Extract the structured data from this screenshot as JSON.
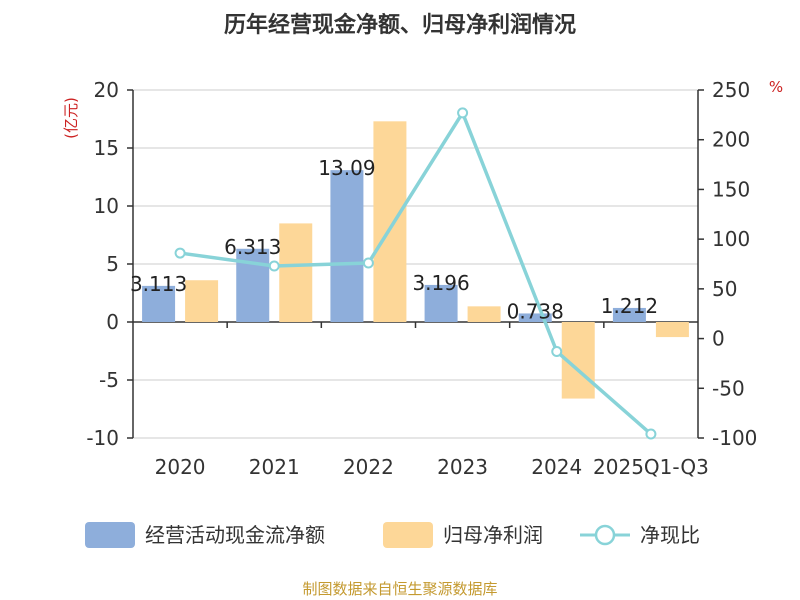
{
  "chart_data": {
    "type": "bar",
    "title": "历年经营现金净额、归母净利润情况",
    "categories": [
      "2020",
      "2021",
      "2022",
      "2023",
      "2024",
      "2025Q1-Q3"
    ],
    "left_axis": {
      "unit": "(亿元)",
      "ylim": [
        -10,
        20
      ],
      "ticks": [
        20,
        15,
        10,
        5,
        0,
        -5,
        -10
      ]
    },
    "right_axis": {
      "unit": "%",
      "ylim": [
        -100,
        250
      ],
      "ticks": [
        250,
        200,
        150,
        100,
        50,
        0,
        -50,
        -100
      ]
    },
    "series": [
      {
        "name": "经营活动现金流净额",
        "type": "bar",
        "axis": "left",
        "color": "#8eaedb",
        "values": [
          3.113,
          6.313,
          13.09,
          3.196,
          0.738,
          1.212
        ],
        "labels": [
          "3.113",
          "6.313",
          "13.09",
          "3.196",
          "0.738",
          "1.212"
        ]
      },
      {
        "name": "归母净利润",
        "type": "bar",
        "axis": "left",
        "color": "#fdd798",
        "values": [
          3.6,
          8.5,
          17.3,
          1.35,
          -6.6,
          -1.3
        ]
      },
      {
        "name": "净现比",
        "type": "line",
        "axis": "right",
        "color": "#88d3d8",
        "values": [
          86,
          73,
          76,
          227,
          -13,
          -96
        ]
      }
    ],
    "legend_position": "bottom",
    "grid": true
  },
  "source": {
    "text": "制图数据来自恒生聚源数据库",
    "color": "#c49a30"
  },
  "colors": {
    "unit": "#cc2222",
    "axis": "#333333",
    "grid": "#cccccc"
  }
}
